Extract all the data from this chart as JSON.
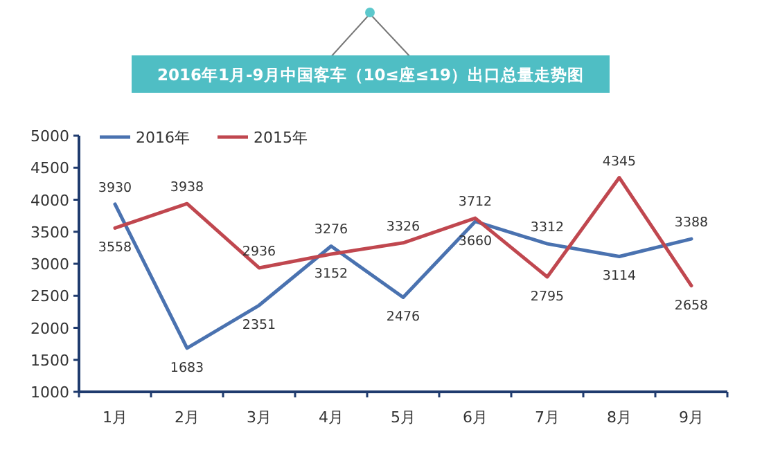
{
  "chart_data": {
    "type": "line",
    "title": "2016年1月-9月中国客车（10≤座≤19）出口总量走势图",
    "categories": [
      "1月",
      "2月",
      "3月",
      "4月",
      "5月",
      "6月",
      "7月",
      "8月",
      "9月"
    ],
    "series": [
      {
        "name": "2016年",
        "color": "#4a72b0",
        "values": [
          3930,
          1683,
          2351,
          3276,
          2476,
          3660,
          3312,
          3114,
          3388
        ]
      },
      {
        "name": "2015年",
        "color": "#c0474f",
        "values": [
          3558,
          3938,
          2936,
          3152,
          3326,
          3712,
          2795,
          4345,
          2658
        ]
      }
    ],
    "ylim": [
      1000,
      5000
    ],
    "yticks": [
      1000,
      1500,
      2000,
      2500,
      3000,
      3500,
      4000,
      4500,
      5000
    ],
    "data_labels": true,
    "legend": "top left",
    "grid": false,
    "marker": "none",
    "line_style": "solid"
  }
}
